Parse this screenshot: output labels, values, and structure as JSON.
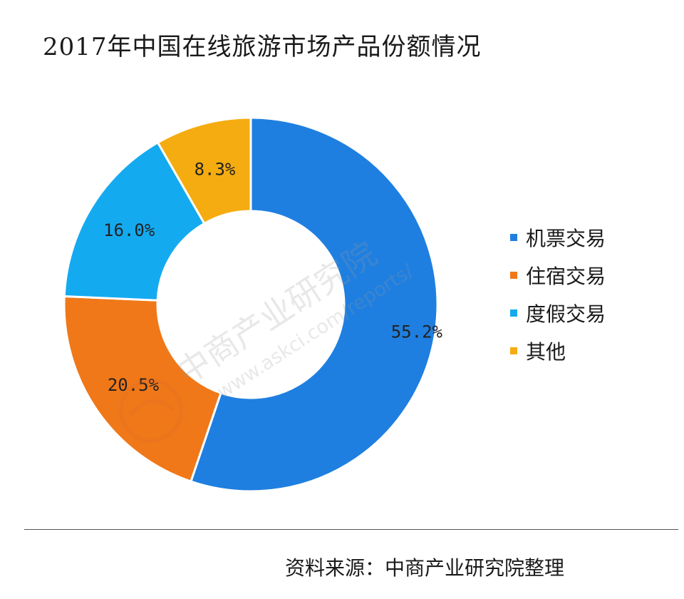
{
  "chart_data": {
    "type": "pie",
    "title": "2017年中国在线旅游市场产品份额情况",
    "categories": [
      "机票交易",
      "住宿交易",
      "度假交易",
      "其他"
    ],
    "values": [
      55.2,
      20.5,
      16.0,
      8.3
    ],
    "labels": [
      "55.2%",
      "20.5%",
      "16.0%",
      "8.3%"
    ],
    "colors": [
      "#1f7fe0",
      "#f07818",
      "#14aaf0",
      "#f5ac10"
    ],
    "donut": true,
    "legend_position": "right"
  },
  "legend": {
    "items": [
      {
        "label": "机票交易",
        "color": "#1f7fe0"
      },
      {
        "label": "住宿交易",
        "color": "#f07818"
      },
      {
        "label": "度假交易",
        "color": "#14aaf0"
      },
      {
        "label": "其他",
        "color": "#f5ac10"
      }
    ]
  },
  "source": "资料来源：中商产业研究院整理",
  "watermark": {
    "text": "中商产业研究院",
    "url": "www.askci.com/reports/"
  }
}
